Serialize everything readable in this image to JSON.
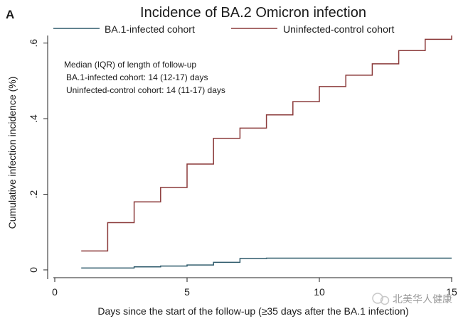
{
  "panel_label": "A",
  "watermark": "北美华人健康",
  "chart_data": {
    "type": "line",
    "step": true,
    "title": "Incidence of BA.2 Omicron infection",
    "xlabel": "Days since the start of the follow-up (≥35 days after the BA.1 infection)",
    "ylabel": "Cumulative infection incidence (%)",
    "xlim": [
      0,
      15
    ],
    "ylim": [
      0,
      0.62
    ],
    "xticks": [
      0,
      5,
      10,
      15
    ],
    "xtick_labels": [
      "0",
      "5",
      "10",
      "15"
    ],
    "yticks": [
      0,
      0.2,
      0.4,
      0.6
    ],
    "ytick_labels": [
      "0",
      ".2",
      ".4",
      ".6"
    ],
    "legend": {
      "position": "top"
    },
    "series": [
      {
        "name": "BA.1-infected cohort",
        "color": "#2e5a6b",
        "x": [
          1,
          2,
          3,
          4,
          5,
          6,
          7,
          8,
          9,
          10,
          11,
          12,
          13,
          14,
          15
        ],
        "y": [
          0.005,
          0.005,
          0.008,
          0.01,
          0.013,
          0.02,
          0.03,
          0.031,
          0.031,
          0.031,
          0.031,
          0.031,
          0.031,
          0.031,
          0.031
        ]
      },
      {
        "name": "Uninfected-control cohort",
        "color": "#8b3a3a",
        "x": [
          1,
          2,
          3,
          4,
          5,
          6,
          7,
          8,
          9,
          10,
          11,
          12,
          13,
          14,
          15
        ],
        "y": [
          0.05,
          0.125,
          0.18,
          0.218,
          0.28,
          0.348,
          0.375,
          0.41,
          0.445,
          0.485,
          0.515,
          0.545,
          0.58,
          0.61,
          0.62
        ]
      }
    ],
    "annotation": {
      "title": "Median (IQR) of length of follow-up",
      "lines": [
        "BA.1-infected cohort: 14 (12-17) days",
        "Uninfected-control cohort: 14 (11-17) days"
      ]
    }
  }
}
